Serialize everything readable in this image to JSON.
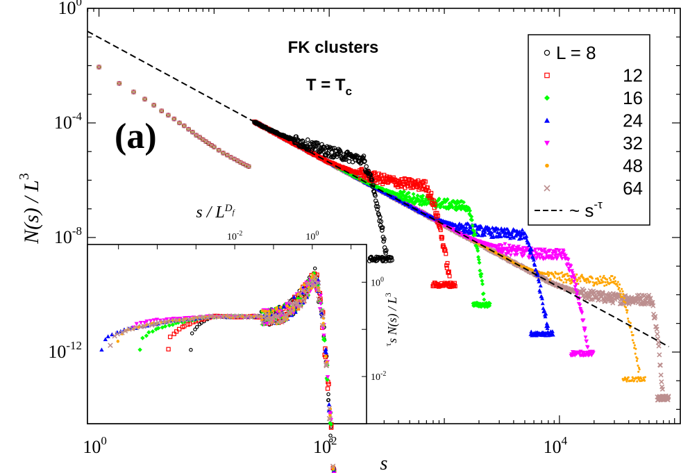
{
  "chart_data": [
    {
      "type": "scatter",
      "title": "FK clusters",
      "subtitle": "T = T",
      "subtitle_sub": "c",
      "panel_label": "(a)",
      "xlabel": "s",
      "ylabel": "N(s) / L",
      "ylabel_sup": "3",
      "xscale": "log",
      "yscale": "log",
      "xlim_log10": [
        -0.1,
        5.05
      ],
      "ylim_log10": [
        -14.5,
        0.0
      ],
      "xticks": [
        {
          "base": "10",
          "exp": "0",
          "log10": 0
        },
        {
          "base": "10",
          "exp": "2",
          "log10": 2
        },
        {
          "base": "10",
          "exp": "4",
          "log10": 4
        }
      ],
      "yticks": [
        {
          "base": "10",
          "exp": "0",
          "log10": 0
        },
        {
          "base": "10",
          "exp": "-4",
          "log10": -4
        },
        {
          "base": "10",
          "exp": "-8",
          "log10": -8
        },
        {
          "base": "10",
          "exp": "-12",
          "log10": -12
        }
      ],
      "legend_position": "top-right",
      "legend_header": "L = ",
      "series": [
        {
          "name": "8",
          "L": 8,
          "marker": "circle",
          "color": "#000000",
          "bump_x": 2.3,
          "bump_y": -5.45,
          "end_x": 2.5
        },
        {
          "name": "12",
          "L": 12,
          "marker": "square",
          "color": "#ff0000",
          "bump_x": 2.85,
          "bump_y": -6.35,
          "end_x": 3.05
        },
        {
          "name": "16",
          "L": 16,
          "marker": "diamond",
          "color": "#00ff00",
          "bump_x": 3.2,
          "bump_y": -7.05,
          "end_x": 3.35
        },
        {
          "name": "24",
          "L": 24,
          "marker": "triangle-up",
          "color": "#0000ff",
          "bump_x": 3.7,
          "bump_y": -8.05,
          "end_x": 3.9
        },
        {
          "name": "32",
          "L": 32,
          "marker": "triangle-down",
          "color": "#ff00ff",
          "bump_x": 4.05,
          "bump_y": -8.75,
          "end_x": 4.25
        },
        {
          "name": "48",
          "L": 48,
          "marker": "circle-small",
          "color": "#ffa500",
          "bump_x": 4.5,
          "bump_y": -9.65,
          "end_x": 4.7
        },
        {
          "name": "64",
          "L": 64,
          "marker": "x",
          "color": "#bc8f8f",
          "bump_x": 4.8,
          "bump_y": -10.3,
          "end_x": 4.9
        }
      ],
      "power_law": {
        "label": "~ s",
        "label_sup": "-τ",
        "intercept_log10": -1.02,
        "slope": -2.18,
        "x_range_log10": [
          -0.1,
          4.95
        ]
      },
      "small_s_points": {
        "x_log10": [
          0.0,
          0.176,
          0.301,
          0.398,
          0.477,
          0.544,
          0.602,
          0.653,
          0.699,
          0.74,
          0.778,
          0.813,
          0.845,
          0.875,
          0.903,
          0.929,
          0.954,
          0.978,
          1.0,
          1.041,
          1.079,
          1.114,
          1.146,
          1.176,
          1.204,
          1.23,
          1.255,
          1.279,
          1.301
        ],
        "y_log10": [
          -2.05,
          -2.62,
          -2.92,
          -3.17,
          -3.38,
          -3.58,
          -3.73,
          -3.86,
          -4.0,
          -4.1,
          -4.22,
          -4.32,
          -4.43,
          -4.5,
          -4.58,
          -4.65,
          -4.72,
          -4.78,
          -4.84,
          -4.95,
          -5.05,
          -5.12,
          -5.2,
          -5.26,
          -5.32,
          -5.38,
          -5.43,
          -5.48,
          -5.52
        ]
      }
    },
    {
      "type": "scatter",
      "panel": "inset",
      "xlabel": "s / L",
      "xlabel_sup": "D",
      "xlabel_sub": "f",
      "ylabel": "s N(s) / L",
      "ylabel_pre_sup": "τ",
      "ylabel_sup": "3",
      "xscale": "log",
      "yscale": "log",
      "xlim_log10": [
        -5.8,
        1.4
      ],
      "ylim_log10": [
        -3.0,
        0.8
      ],
      "xticks": [
        {
          "base": "10",
          "exp": "-2",
          "log10": -2
        },
        {
          "base": "10",
          "exp": "0",
          "log10": 0
        }
      ],
      "yticks": [
        {
          "base": "10",
          "exp": "0",
          "log10": 0
        },
        {
          "base": "10",
          "exp": "-2",
          "log10": -2
        }
      ],
      "scaling_curve": {
        "plateau_y_log10": -0.73,
        "peak_x_log10": 0.05,
        "peak_y_log10": 0.12
      },
      "first_points": [
        {
          "series": "8",
          "x_log10": -3.15,
          "y_log10": -1.42
        },
        {
          "series": "12",
          "x_log10": -3.72,
          "y_log10": -1.42
        },
        {
          "series": "16",
          "x_log10": -4.45,
          "y_log10": -1.42
        },
        {
          "series": "24",
          "x_log10": -5.45,
          "y_log10": -1.42
        },
        {
          "series": "32",
          "x_log10": -4.6,
          "y_log10": -0.95
        },
        {
          "series": "48",
          "x_log10": -5.0,
          "y_log10": -1.25
        },
        {
          "series": "64",
          "x_log10": -5.2,
          "y_log10": -1.35
        }
      ]
    }
  ]
}
